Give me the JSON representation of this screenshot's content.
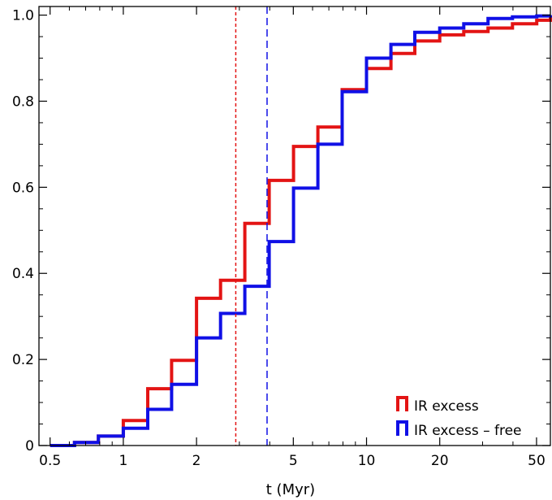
{
  "chart_data": {
    "type": "line",
    "title": "",
    "xlabel": "t (Myr)",
    "ylabel": "",
    "xscale": "log",
    "xlim": [
      0.45,
      57
    ],
    "ylim": [
      0,
      1.02
    ],
    "grid": false,
    "legend_position": "bottom-right",
    "x_ticks": [
      {
        "value": 0.5,
        "label": "0.5"
      },
      {
        "value": 1,
        "label": "1"
      },
      {
        "value": 2,
        "label": "2"
      },
      {
        "value": 5,
        "label": "5"
      },
      {
        "value": 10,
        "label": "10"
      },
      {
        "value": 20,
        "label": "20"
      },
      {
        "value": 50,
        "label": "50"
      }
    ],
    "y_ticks": [
      {
        "value": 0,
        "label": "0"
      },
      {
        "value": 0.2,
        "label": "0.2"
      },
      {
        "value": 0.4,
        "label": "0.4"
      },
      {
        "value": 0.6,
        "label": "0.6"
      },
      {
        "value": 0.8,
        "label": "0.8"
      },
      {
        "value": 1.0,
        "label": "1.0"
      }
    ],
    "series": [
      {
        "name": "IR excess",
        "color": "#e31414",
        "style": "step",
        "x": [
          0.5,
          0.63,
          0.79,
          1.0,
          1.26,
          1.58,
          2.0,
          2.51,
          3.16,
          3.98,
          5.01,
          6.31,
          7.94,
          10.0,
          12.6,
          15.8,
          20.0,
          25.1,
          31.6,
          39.8,
          50.1,
          57
        ],
        "y": [
          0.0,
          0.007,
          0.022,
          0.058,
          0.132,
          0.198,
          0.342,
          0.384,
          0.516,
          0.616,
          0.695,
          0.74,
          0.827,
          0.876,
          0.911,
          0.94,
          0.954,
          0.962,
          0.97,
          0.98,
          0.988,
          0.996
        ]
      },
      {
        "name": "IR excess – free",
        "color": "#1010e6",
        "style": "step",
        "x": [
          0.5,
          0.63,
          0.79,
          1.0,
          1.26,
          1.58,
          2.0,
          2.51,
          3.16,
          3.98,
          5.01,
          6.31,
          7.94,
          10.0,
          12.6,
          15.8,
          20.0,
          25.1,
          31.6,
          39.8,
          50.1,
          57
        ],
        "y": [
          0.0,
          0.007,
          0.022,
          0.04,
          0.084,
          0.142,
          0.25,
          0.307,
          0.37,
          0.474,
          0.598,
          0.7,
          0.822,
          0.9,
          0.932,
          0.96,
          0.97,
          0.98,
          0.992,
          0.996,
          0.998,
          1.0
        ]
      }
    ],
    "vertical_lines": [
      {
        "x": 2.9,
        "color": "#e31414",
        "dash": "short"
      },
      {
        "x": 3.9,
        "color": "#1010e6",
        "dash": "long"
      }
    ]
  }
}
